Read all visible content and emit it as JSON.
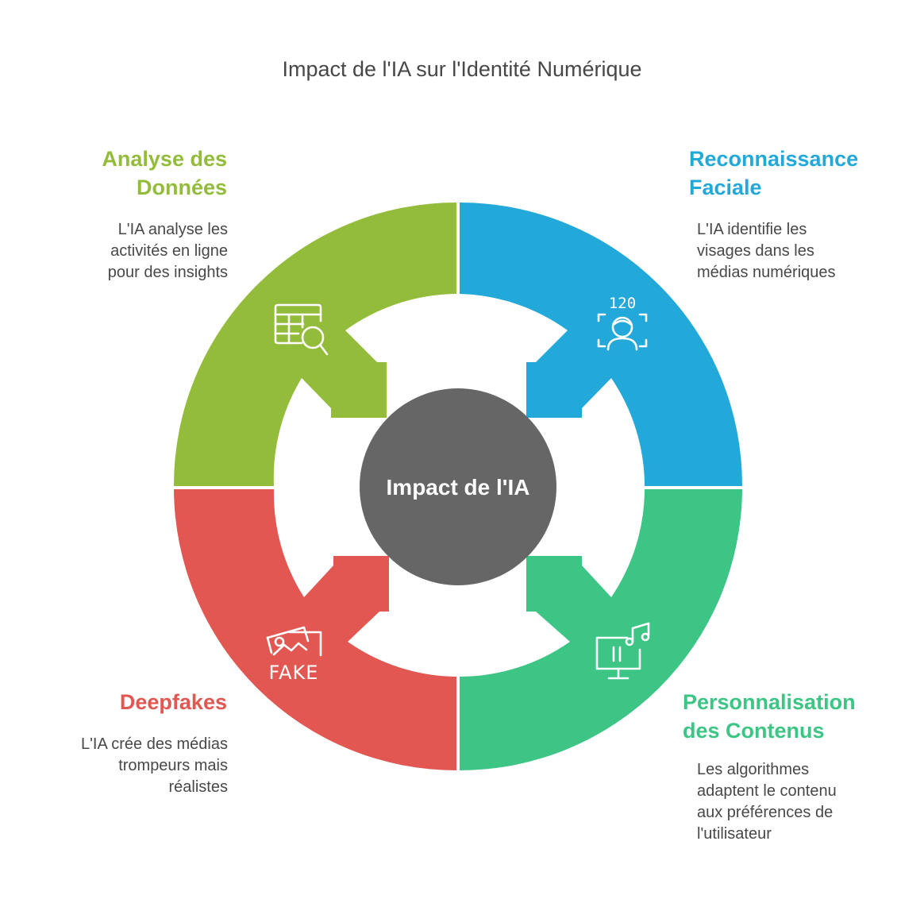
{
  "title": "Impact de l'IA sur l'Identité Numérique",
  "center": {
    "label": "Impact de l'IA",
    "color": "#666666"
  },
  "sections": [
    {
      "id": "data-analysis",
      "title_lines": [
        "Analyse des",
        "Données"
      ],
      "description_lines": [
        "L'IA analyse les",
        "activités en ligne",
        "pour des insights"
      ],
      "color": "#93BC3B",
      "icon": "table-search-icon"
    },
    {
      "id": "facial-recognition",
      "title_lines": [
        "Reconnaissance",
        "Faciale"
      ],
      "description_lines": [
        "L'IA identifie les",
        "visages dans les",
        "médias numériques"
      ],
      "color": "#22A8D9",
      "icon": "face-scan-icon",
      "icon_text": "120"
    },
    {
      "id": "content-personalization",
      "title_lines": [
        "Personnalisation",
        "des Contenus"
      ],
      "description_lines": [
        "Les algorithmes",
        "adaptent le contenu",
        "aux préférences de",
        "l'utilisateur"
      ],
      "color": "#3DC585",
      "icon": "monitor-music-icon"
    },
    {
      "id": "deepfakes",
      "title_lines": [
        "Deepfakes"
      ],
      "description_lines": [
        "L'IA crée des médias",
        "trompeurs mais",
        "réalistes"
      ],
      "color": "#E35752",
      "icon": "fake-image-icon",
      "icon_text": "FAKE"
    }
  ]
}
